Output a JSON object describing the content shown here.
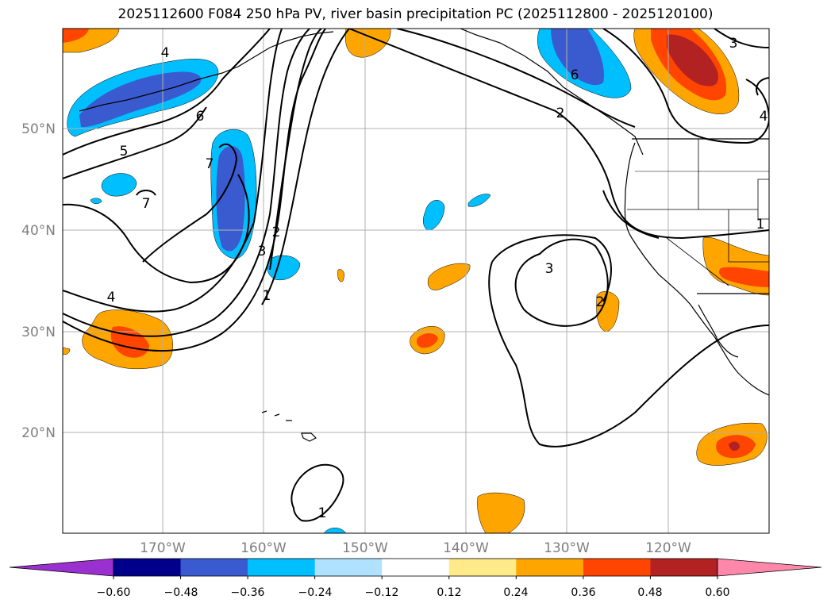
{
  "title": "2025112600 F084 250 hPa PV, river basin precipitation PC (2025112800 - 2025120100)",
  "latitude_labels": [
    "50°N",
    "40°N",
    "30°N",
    "20°N"
  ],
  "longitude_labels": [
    "170°W",
    "160°W",
    "150°W",
    "140°W",
    "130°W",
    "120°W"
  ],
  "colorbar": {
    "tick_labels": [
      "−0.60",
      "−0.48",
      "−0.36",
      "−0.24",
      "−0.12",
      "0.12",
      "0.24",
      "0.36",
      "0.48",
      "0.60"
    ],
    "under_color": "#9b30d0",
    "over_color": "#ff88aa",
    "colors": [
      "#00008b",
      "#3a5bd0",
      "#00bfff",
      "#b0e2ff",
      "#ffffff",
      "#ffea8a",
      "#ffa500",
      "#ff4500",
      "#b22222"
    ]
  },
  "contour_labels": [
    "4",
    "5",
    "6",
    "7",
    "7",
    "3",
    "2",
    "1",
    "4",
    "6",
    "2",
    "3",
    "4",
    "3",
    "2",
    "1",
    "1"
  ],
  "colors": {
    "positive_strong": "#b22222",
    "positive_mid": "#ff4500",
    "positive_weak": "#ffa500",
    "negative_strong": "#3a5bd0",
    "negative_weak": "#00bfff"
  }
}
